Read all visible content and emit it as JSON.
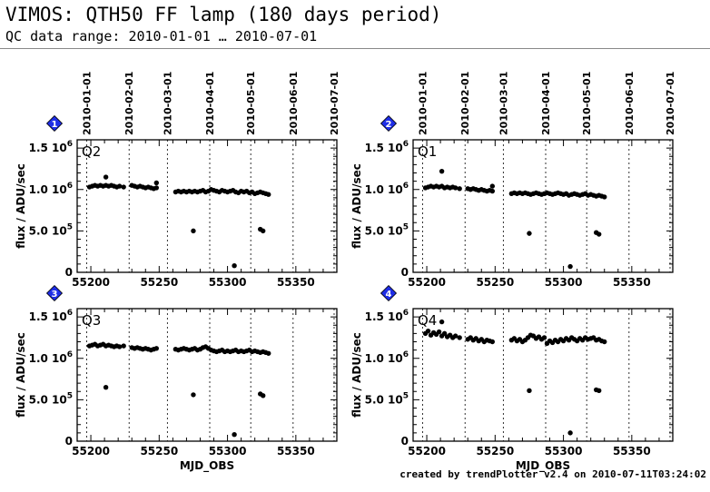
{
  "header": {
    "title": "VIMOS: QTH50 FF lamp (180 days period)",
    "subtitle": "QC data range: 2010-01-01 … 2010-07-01"
  },
  "footer": {
    "text": "created by trendPlotter v2.4 on 2010-07-11T03:24:02"
  },
  "chart_data": [
    {
      "type": "scatter",
      "panel_number": "1",
      "label": "Q2",
      "xlabel": "",
      "ylabel": "flux / ADU/sec",
      "xlim": [
        55190,
        55380
      ],
      "ylim": [
        0,
        1600000
      ],
      "x_ticks": [
        55200,
        55250,
        55300,
        55350
      ],
      "y_ticks": [
        {
          "value": 0,
          "label": "0",
          "exp": ""
        },
        {
          "value": 500000,
          "label": "5.0 10",
          "exp": "5"
        },
        {
          "value": 1000000,
          "label": "1.0 10",
          "exp": "6"
        },
        {
          "value": 1500000,
          "label": "1.5 10",
          "exp": "6"
        }
      ],
      "date_ticks": [
        {
          "mjd": 55197,
          "label": "2010-01-01"
        },
        {
          "mjd": 55228,
          "label": "2010-02-01"
        },
        {
          "mjd": 55256,
          "label": "2010-03-01"
        },
        {
          "mjd": 55287,
          "label": "2010-04-01"
        },
        {
          "mjd": 55317,
          "label": "2010-05-01"
        },
        {
          "mjd": 55348,
          "label": "2010-06-01"
        },
        {
          "mjd": 55378,
          "label": "2010-07-01"
        }
      ],
      "grid": "vertical dotted at month boundaries",
      "series": [
        {
          "x": [
            55199,
            55201,
            55203,
            55205,
            55207,
            55209,
            55211,
            55213,
            55215,
            55217,
            55219,
            55221,
            55224,
            55230,
            55232,
            55234,
            55236,
            55238,
            55240,
            55242,
            55244,
            55246,
            55248,
            55262,
            55264,
            55266,
            55268,
            55270,
            55272,
            55274,
            55276,
            55278,
            55280,
            55282,
            55284,
            55286,
            55288,
            55290,
            55292,
            55294,
            55296,
            55298,
            55300,
            55302,
            55304,
            55306,
            55308,
            55310,
            55312,
            55314,
            55316,
            55318,
            55320,
            55322,
            55324,
            55326,
            55328,
            55330,
            55211,
            55248,
            55275,
            55305,
            55324,
            55326
          ],
          "y": [
            1030000,
            1040000,
            1050000,
            1040000,
            1050000,
            1040000,
            1050000,
            1040000,
            1050000,
            1040000,
            1030000,
            1040000,
            1030000,
            1050000,
            1040000,
            1030000,
            1040000,
            1030000,
            1020000,
            1030000,
            1020000,
            1010000,
            1020000,
            970000,
            980000,
            970000,
            980000,
            970000,
            980000,
            970000,
            980000,
            970000,
            980000,
            990000,
            970000,
            980000,
            1000000,
            990000,
            980000,
            970000,
            990000,
            980000,
            970000,
            980000,
            990000,
            970000,
            960000,
            980000,
            970000,
            980000,
            960000,
            970000,
            950000,
            960000,
            970000,
            960000,
            950000,
            940000,
            1150000,
            1080000,
            500000,
            80000,
            520000,
            500000
          ]
        }
      ]
    },
    {
      "type": "scatter",
      "panel_number": "2",
      "label": "Q1",
      "xlabel": "",
      "ylabel": "flux / ADU/sec",
      "xlim": [
        55190,
        55380
      ],
      "ylim": [
        0,
        1600000
      ],
      "x_ticks": [
        55200,
        55250,
        55300,
        55350
      ],
      "y_ticks": [
        {
          "value": 0,
          "label": "0",
          "exp": ""
        },
        {
          "value": 500000,
          "label": "5.0 10",
          "exp": "5"
        },
        {
          "value": 1000000,
          "label": "1.0 10",
          "exp": "6"
        },
        {
          "value": 1500000,
          "label": "1.5 10",
          "exp": "6"
        }
      ],
      "date_ticks": [
        {
          "mjd": 55197,
          "label": "2010-01-01"
        },
        {
          "mjd": 55228,
          "label": "2010-02-01"
        },
        {
          "mjd": 55256,
          "label": "2010-03-01"
        },
        {
          "mjd": 55287,
          "label": "2010-04-01"
        },
        {
          "mjd": 55317,
          "label": "2010-05-01"
        },
        {
          "mjd": 55348,
          "label": "2010-06-01"
        },
        {
          "mjd": 55378,
          "label": "2010-07-01"
        }
      ],
      "grid": "vertical dotted at month boundaries",
      "series": [
        {
          "x": [
            55199,
            55201,
            55203,
            55205,
            55207,
            55209,
            55211,
            55213,
            55215,
            55217,
            55219,
            55221,
            55224,
            55230,
            55232,
            55234,
            55236,
            55238,
            55240,
            55242,
            55244,
            55246,
            55248,
            55262,
            55264,
            55266,
            55268,
            55270,
            55272,
            55274,
            55276,
            55278,
            55280,
            55282,
            55284,
            55286,
            55288,
            55290,
            55292,
            55294,
            55296,
            55298,
            55300,
            55302,
            55304,
            55306,
            55308,
            55310,
            55312,
            55314,
            55316,
            55318,
            55320,
            55322,
            55324,
            55326,
            55328,
            55330,
            55211,
            55248,
            55275,
            55305,
            55324,
            55326
          ],
          "y": [
            1020000,
            1030000,
            1040000,
            1030000,
            1040000,
            1030000,
            1040000,
            1020000,
            1030000,
            1020000,
            1030000,
            1020000,
            1010000,
            1010000,
            1000000,
            1010000,
            1000000,
            990000,
            1000000,
            990000,
            980000,
            990000,
            980000,
            950000,
            960000,
            950000,
            960000,
            950000,
            960000,
            950000,
            940000,
            950000,
            960000,
            950000,
            940000,
            950000,
            960000,
            950000,
            940000,
            950000,
            960000,
            950000,
            940000,
            950000,
            930000,
            940000,
            950000,
            940000,
            930000,
            940000,
            950000,
            930000,
            940000,
            930000,
            920000,
            930000,
            920000,
            910000,
            1220000,
            1040000,
            470000,
            70000,
            480000,
            460000
          ]
        }
      ]
    },
    {
      "type": "scatter",
      "panel_number": "3",
      "label": "Q3",
      "xlabel": "MJD_OBS",
      "ylabel": "flux / ADU/sec",
      "xlim": [
        55190,
        55380
      ],
      "ylim": [
        0,
        1600000
      ],
      "x_ticks": [
        55200,
        55250,
        55300,
        55350
      ],
      "y_ticks": [
        {
          "value": 0,
          "label": "0",
          "exp": ""
        },
        {
          "value": 500000,
          "label": "5.0 10",
          "exp": "5"
        },
        {
          "value": 1000000,
          "label": "1.0 10",
          "exp": "6"
        },
        {
          "value": 1500000,
          "label": "1.5 10",
          "exp": "6"
        }
      ],
      "date_ticks": [
        {
          "mjd": 55197,
          "label": "2010-01-01"
        },
        {
          "mjd": 55228,
          "label": "2010-02-01"
        },
        {
          "mjd": 55256,
          "label": "2010-03-01"
        },
        {
          "mjd": 55287,
          "label": "2010-04-01"
        },
        {
          "mjd": 55317,
          "label": "2010-05-01"
        },
        {
          "mjd": 55348,
          "label": "2010-06-01"
        },
        {
          "mjd": 55378,
          "label": "2010-07-01"
        }
      ],
      "grid": "vertical dotted at month boundaries",
      "series": [
        {
          "x": [
            55199,
            55201,
            55203,
            55205,
            55207,
            55209,
            55211,
            55213,
            55215,
            55217,
            55219,
            55221,
            55224,
            55230,
            55232,
            55234,
            55236,
            55238,
            55240,
            55242,
            55244,
            55246,
            55248,
            55262,
            55264,
            55266,
            55268,
            55270,
            55272,
            55274,
            55276,
            55278,
            55280,
            55282,
            55284,
            55286,
            55288,
            55290,
            55292,
            55294,
            55296,
            55298,
            55300,
            55302,
            55304,
            55306,
            55308,
            55310,
            55312,
            55314,
            55316,
            55318,
            55320,
            55322,
            55324,
            55326,
            55328,
            55330,
            55211,
            55275,
            55305,
            55324,
            55326
          ],
          "y": [
            1150000,
            1160000,
            1170000,
            1150000,
            1160000,
            1170000,
            1150000,
            1160000,
            1150000,
            1140000,
            1150000,
            1140000,
            1150000,
            1130000,
            1120000,
            1130000,
            1120000,
            1110000,
            1120000,
            1110000,
            1100000,
            1110000,
            1120000,
            1110000,
            1100000,
            1110000,
            1120000,
            1110000,
            1100000,
            1110000,
            1120000,
            1100000,
            1110000,
            1130000,
            1140000,
            1120000,
            1100000,
            1090000,
            1080000,
            1090000,
            1100000,
            1080000,
            1090000,
            1080000,
            1090000,
            1100000,
            1080000,
            1090000,
            1080000,
            1090000,
            1100000,
            1080000,
            1090000,
            1080000,
            1070000,
            1080000,
            1070000,
            1060000,
            650000,
            560000,
            80000,
            570000,
            550000
          ]
        }
      ]
    },
    {
      "type": "scatter",
      "panel_number": "4",
      "label": "Q4",
      "xlabel": "MJD_OBS",
      "ylabel": "flux / ADU/sec",
      "xlim": [
        55190,
        55380
      ],
      "ylim": [
        0,
        1600000
      ],
      "x_ticks": [
        55200,
        55250,
        55300,
        55350
      ],
      "y_ticks": [
        {
          "value": 0,
          "label": "0",
          "exp": ""
        },
        {
          "value": 500000,
          "label": "5.0 10",
          "exp": "5"
        },
        {
          "value": 1000000,
          "label": "1.0 10",
          "exp": "6"
        },
        {
          "value": 1500000,
          "label": "1.5 10",
          "exp": "6"
        }
      ],
      "date_ticks": [
        {
          "mjd": 55197,
          "label": "2010-01-01"
        },
        {
          "mjd": 55228,
          "label": "2010-02-01"
        },
        {
          "mjd": 55256,
          "label": "2010-03-01"
        },
        {
          "mjd": 55287,
          "label": "2010-04-01"
        },
        {
          "mjd": 55317,
          "label": "2010-05-01"
        },
        {
          "mjd": 55348,
          "label": "2010-06-01"
        },
        {
          "mjd": 55378,
          "label": "2010-07-01"
        }
      ],
      "grid": "vertical dotted at month boundaries",
      "series": [
        {
          "x": [
            55199,
            55201,
            55203,
            55205,
            55207,
            55209,
            55211,
            55213,
            55215,
            55217,
            55219,
            55221,
            55224,
            55230,
            55232,
            55234,
            55236,
            55238,
            55240,
            55242,
            55244,
            55246,
            55248,
            55262,
            55264,
            55266,
            55268,
            55270,
            55272,
            55274,
            55276,
            55278,
            55280,
            55282,
            55284,
            55286,
            55288,
            55290,
            55292,
            55294,
            55296,
            55298,
            55300,
            55302,
            55304,
            55306,
            55308,
            55310,
            55312,
            55314,
            55316,
            55318,
            55320,
            55322,
            55324,
            55326,
            55328,
            55330,
            55211,
            55275,
            55305,
            55324,
            55326
          ],
          "y": [
            1300000,
            1330000,
            1280000,
            1310000,
            1290000,
            1320000,
            1270000,
            1300000,
            1260000,
            1280000,
            1250000,
            1270000,
            1250000,
            1230000,
            1250000,
            1220000,
            1240000,
            1210000,
            1230000,
            1200000,
            1220000,
            1210000,
            1200000,
            1220000,
            1240000,
            1210000,
            1230000,
            1200000,
            1220000,
            1250000,
            1280000,
            1270000,
            1240000,
            1260000,
            1230000,
            1250000,
            1180000,
            1210000,
            1190000,
            1220000,
            1200000,
            1230000,
            1210000,
            1240000,
            1220000,
            1250000,
            1230000,
            1210000,
            1240000,
            1220000,
            1250000,
            1230000,
            1240000,
            1250000,
            1220000,
            1230000,
            1210000,
            1200000,
            1440000,
            610000,
            100000,
            620000,
            610000
          ]
        }
      ]
    }
  ]
}
